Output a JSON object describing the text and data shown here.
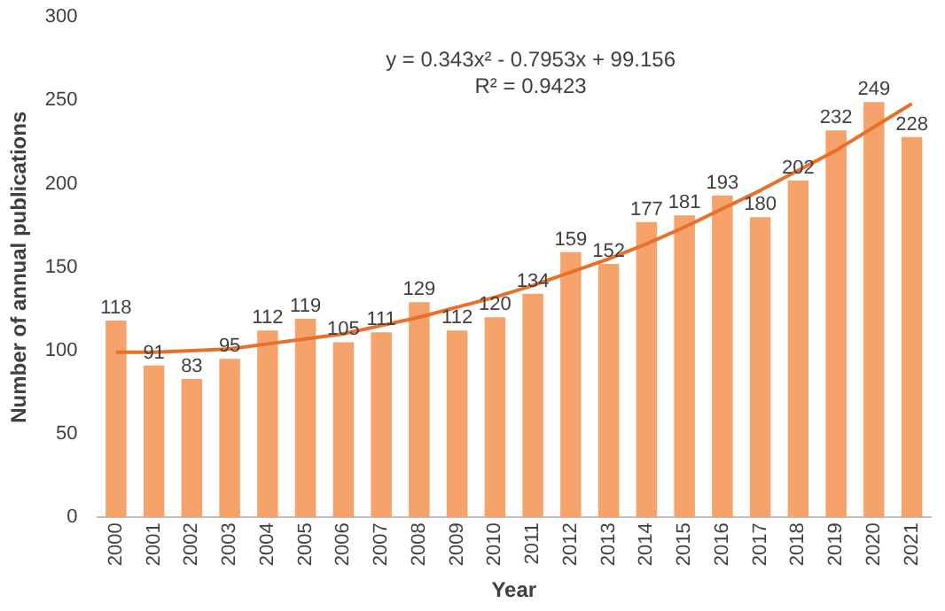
{
  "chart_data": {
    "type": "bar",
    "xlabel": "Year",
    "ylabel": "Number of annual publications",
    "categories": [
      "2000",
      "2001",
      "2002",
      "2003",
      "2004",
      "2005",
      "2006",
      "2007",
      "2008",
      "2009",
      "2010",
      "2011",
      "2012",
      "2013",
      "2014",
      "2015",
      "2016",
      "2017",
      "2018",
      "2019",
      "2020",
      "2021"
    ],
    "series": [
      {
        "color": "#f5a36b",
        "values": [
          118,
          91,
          83,
          95,
          112,
          119,
          105,
          111,
          129,
          112,
          120,
          134,
          159,
          152,
          177,
          181,
          193,
          180,
          202,
          232,
          249,
          228
        ],
        "value_labels": [
          "118",
          "91",
          "83",
          "95",
          "112",
          "119",
          "105",
          "111",
          "129",
          "112",
          "120",
          "134",
          "159",
          "152",
          "177",
          "181",
          "193",
          "180",
          "202",
          "232",
          "249",
          "228"
        ]
      },
      {
        "type": "line",
        "color": "#e8702a",
        "values": [
          99,
          99,
          100,
          101,
          104,
          107,
          110,
          115,
          120,
          126,
          132,
          139,
          147,
          155,
          164,
          174,
          185,
          196,
          208,
          220,
          234,
          248
        ]
      }
    ],
    "ylim": [
      0,
      300
    ],
    "yticks": [
      0,
      50,
      100,
      150,
      200,
      250,
      300
    ],
    "grid": false,
    "legend": false,
    "marker": "none",
    "annotations": [
      "y = 0.343x² - 0.7953x + 99.156",
      "R² = 0.9423"
    ]
  }
}
